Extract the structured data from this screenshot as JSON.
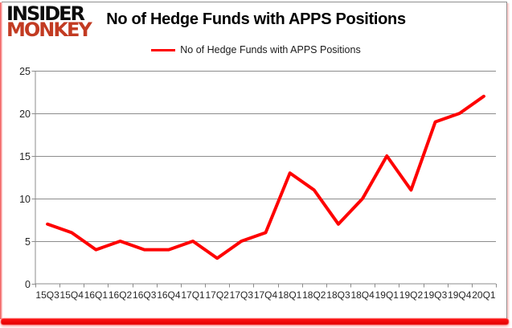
{
  "logo": {
    "line1": "INSIDER",
    "line2": "MONKEY"
  },
  "header": {
    "title": "No of Hedge Funds with APPS Positions"
  },
  "legend": {
    "label": "No of Hedge Funds with APPS Positions"
  },
  "colors": {
    "line": "#FE0000",
    "grid": "#8C8C8C",
    "axis": "#8C8C8C",
    "tick_text": "#262626",
    "logo_black": "#0D0D0D",
    "logo_red": "#C23B22",
    "frame_red": "#E20000",
    "frame_gray": "#8F8F8F",
    "background": "#FFFFFF"
  },
  "chart_data": {
    "type": "line",
    "title": "No of Hedge Funds with APPS Positions",
    "categories": [
      "15Q3",
      "15Q4",
      "16Q1",
      "16Q2",
      "16Q3",
      "16Q4",
      "17Q1",
      "17Q2",
      "17Q3",
      "17Q4",
      "18Q1",
      "18Q2",
      "18Q3",
      "18Q4",
      "19Q1",
      "19Q2",
      "19Q3",
      "19Q4",
      "20Q1"
    ],
    "series": [
      {
        "name": "No of Hedge Funds with APPS Positions",
        "values": [
          7,
          6,
          4,
          5,
          4,
          4,
          5,
          3,
          5,
          6,
          13,
          11,
          7,
          10,
          15,
          11,
          19,
          20,
          22
        ]
      }
    ],
    "xlabel": "",
    "ylabel": "",
    "ylim": [
      0,
      25
    ],
    "yticks": [
      0,
      5,
      10,
      15,
      20,
      25
    ],
    "grid": true,
    "legend_position": "top"
  }
}
